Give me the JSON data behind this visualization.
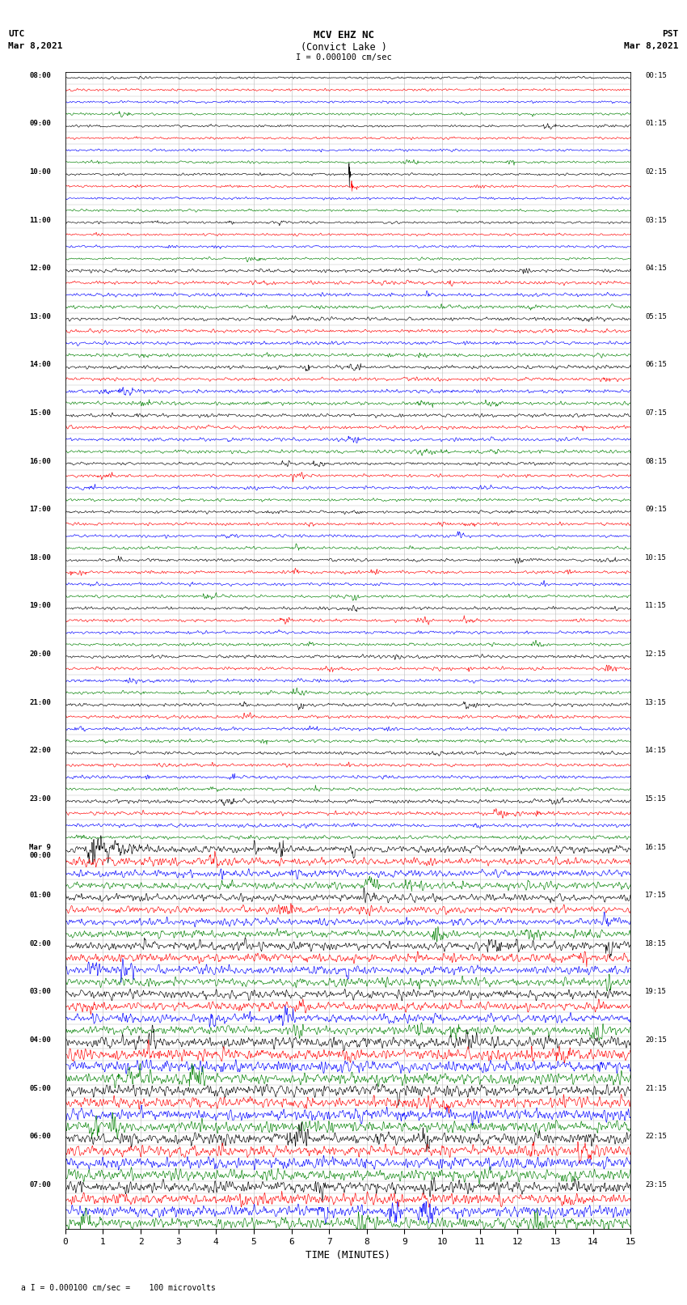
{
  "title_line1": "MCV EHZ NC",
  "title_line2": "(Convict Lake )",
  "title_line3": "I = 0.000100 cm/sec",
  "label_utc": "UTC",
  "label_date_left": "Mar 8,2021",
  "label_pst": "PST",
  "label_date_right": "Mar 8,2021",
  "footer": "a I = 0.000100 cm/sec =    100 microvolts",
  "xlabel": "TIME (MINUTES)",
  "left_times": [
    "08:00",
    "",
    "",
    "",
    "09:00",
    "",
    "",
    "",
    "10:00",
    "",
    "",
    "",
    "11:00",
    "",
    "",
    "",
    "12:00",
    "",
    "",
    "",
    "13:00",
    "",
    "",
    "",
    "14:00",
    "",
    "",
    "",
    "15:00",
    "",
    "",
    "",
    "16:00",
    "",
    "",
    "",
    "17:00",
    "",
    "",
    "",
    "18:00",
    "",
    "",
    "",
    "19:00",
    "",
    "",
    "",
    "20:00",
    "",
    "",
    "",
    "21:00",
    "",
    "",
    "",
    "22:00",
    "",
    "",
    "",
    "23:00",
    "",
    "",
    "",
    "Mar 9\n00:00",
    "",
    "",
    "",
    "01:00",
    "",
    "",
    "",
    "02:00",
    "",
    "",
    "",
    "03:00",
    "",
    "",
    "",
    "04:00",
    "",
    "",
    "",
    "05:00",
    "",
    "",
    "",
    "06:00",
    "",
    "",
    "",
    "07:00",
    "",
    "",
    ""
  ],
  "right_times": [
    "00:15",
    "",
    "",
    "",
    "01:15",
    "",
    "",
    "",
    "02:15",
    "",
    "",
    "",
    "03:15",
    "",
    "",
    "",
    "04:15",
    "",
    "",
    "",
    "05:15",
    "",
    "",
    "",
    "06:15",
    "",
    "",
    "",
    "07:15",
    "",
    "",
    "",
    "08:15",
    "",
    "",
    "",
    "09:15",
    "",
    "",
    "",
    "10:15",
    "",
    "",
    "",
    "11:15",
    "",
    "",
    "",
    "12:15",
    "",
    "",
    "",
    "13:15",
    "",
    "",
    "",
    "14:15",
    "",
    "",
    "",
    "15:15",
    "",
    "",
    "",
    "16:15",
    "",
    "",
    "",
    "17:15",
    "",
    "",
    "",
    "18:15",
    "",
    "",
    "",
    "19:15",
    "",
    "",
    "",
    "20:15",
    "",
    "",
    "",
    "21:15",
    "",
    "",
    "",
    "22:15",
    "",
    "",
    "",
    "23:15",
    "",
    "",
    ""
  ],
  "n_rows": 96,
  "trace_colors_cycle": [
    "black",
    "red",
    "blue",
    "green"
  ],
  "bg_color": "white",
  "grid_color": "#bbbbbb",
  "x_ticks": [
    0,
    1,
    2,
    3,
    4,
    5,
    6,
    7,
    8,
    9,
    10,
    11,
    12,
    13,
    14,
    15
  ],
  "seed": 42
}
